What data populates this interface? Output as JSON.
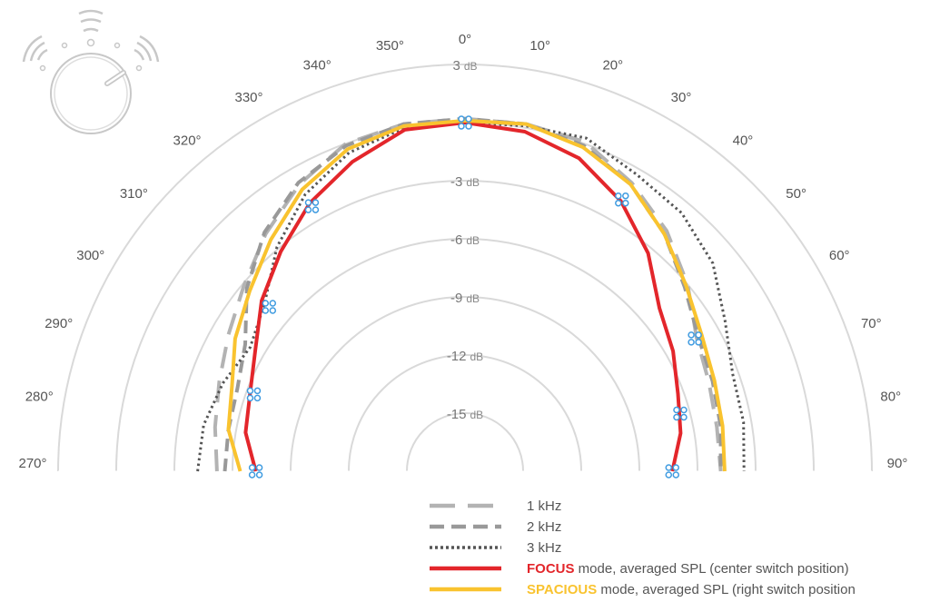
{
  "chart_data": {
    "type": "line",
    "subtype": "polar-half",
    "title": "",
    "radial_axis": {
      "unit": "dB",
      "min": -18,
      "max": 3,
      "ring_values": [
        3,
        -3,
        -6,
        -9,
        -12,
        -15
      ],
      "ring_labels": [
        "3",
        "-3",
        "-6",
        "-9",
        "-12",
        "-15"
      ],
      "extra_rings": [
        0,
        -18
      ]
    },
    "angular_axis": {
      "tick_step_deg": 10,
      "labels": [
        "270°",
        "280°",
        "290°",
        "300°",
        "310°",
        "320°",
        "330°",
        "340°",
        "350°",
        "0°",
        "10°",
        "20°",
        "30°",
        "40°",
        "50°",
        "60°",
        "70°",
        "80°",
        "90°"
      ],
      "degrees": [
        -90,
        -80,
        -70,
        -60,
        -50,
        -40,
        -30,
        -20,
        -10,
        0,
        10,
        20,
        30,
        40,
        50,
        60,
        70,
        80,
        90
      ]
    },
    "grid": true,
    "legend_position": "bottom-right",
    "x_angles_deg": [
      -90,
      -80,
      -70,
      -60,
      -50,
      -40,
      -30,
      -20,
      -10,
      0,
      10,
      20,
      30,
      40,
      50,
      60,
      70,
      80,
      90
    ],
    "series": [
      {
        "name": "1 kHz",
        "style": "long-dash",
        "color": "#b3b3b3",
        "values": [
          -5.2,
          -4.9,
          -4.5,
          -3.9,
          -3.1,
          -2.0,
          -0.9,
          0.0,
          0.2,
          0.2,
          0.2,
          0.1,
          -0.8,
          -1.8,
          -3.0,
          -4.2,
          -4.6,
          -4.8,
          -4.8
        ]
      },
      {
        "name": "2 kHz",
        "style": "dash",
        "color": "#999999",
        "values": [
          -5.6,
          -5.6,
          -5.5,
          -4.9,
          -3.3,
          -1.9,
          -0.8,
          -0.1,
          0.2,
          0.2,
          0.2,
          -0.1,
          -0.9,
          -2.0,
          -3.2,
          -4.1,
          -4.4,
          -4.6,
          -4.8
        ]
      },
      {
        "name": "3 kHz",
        "style": "dotted",
        "color": "#555555",
        "values": [
          -4.2,
          -4.3,
          -4.7,
          -5.2,
          -4.5,
          -2.9,
          -1.5,
          -0.5,
          0.0,
          0.0,
          0.1,
          0.3,
          -0.3,
          -0.6,
          -1.3,
          -2.5,
          -3.3,
          -3.4,
          -3.6
        ]
      },
      {
        "name": "FOCUS mode, averaged SPL (center switch position)",
        "style": "solid",
        "color": "#e3262b",
        "values": [
          -7.2,
          -6.5,
          -6.2,
          -5.5,
          -4.3,
          -3.2,
          -2.0,
          -1.0,
          -0.1,
          0.0,
          -0.2,
          -0.8,
          -1.9,
          -3.3,
          -4.9,
          -5.6,
          -6.3,
          -6.7,
          -7.3
        ]
      },
      {
        "name": "SPACIOUS mode, averaged SPL (right switch position",
        "style": "solid",
        "color": "#f9c32f",
        "values": [
          -6.4,
          -5.6,
          -5.2,
          -4.3,
          -3.5,
          -2.4,
          -1.2,
          -0.3,
          0.1,
          0.1,
          0.2,
          -0.2,
          -0.9,
          -2.0,
          -3.1,
          -3.9,
          -4.3,
          -4.5,
          -4.6
        ]
      }
    ],
    "markers": {
      "style": "blue-circle-cluster",
      "color": "#3f9be0",
      "points": [
        {
          "angle_deg": -90,
          "db": -7.2
        },
        {
          "angle_deg": -70,
          "db": -6.4
        },
        {
          "angle_deg": -50,
          "db": -4.8
        },
        {
          "angle_deg": -30,
          "db": -2.2
        },
        {
          "angle_deg": 0,
          "db": 0.0
        },
        {
          "angle_deg": 30,
          "db": -1.8
        },
        {
          "angle_deg": 60,
          "db": -4.3
        },
        {
          "angle_deg": 75,
          "db": -6.5
        },
        {
          "angle_deg": 90,
          "db": -7.3
        }
      ]
    },
    "legend": [
      {
        "style": "long-dash",
        "color": "#b3b3b3",
        "parts": [
          {
            "text": "1 kHz",
            "bold": false,
            "color": "#555555"
          }
        ]
      },
      {
        "style": "dash",
        "color": "#999999",
        "parts": [
          {
            "text": "2 kHz",
            "bold": false,
            "color": "#555555"
          }
        ]
      },
      {
        "style": "dotted",
        "color": "#555555",
        "parts": [
          {
            "text": "3 kHz",
            "bold": false,
            "color": "#555555"
          }
        ]
      },
      {
        "style": "solid",
        "color": "#e3262b",
        "parts": [
          {
            "text": "FOCUS",
            "bold": true,
            "color": "#e3262b"
          },
          {
            "text": " mode, averaged SPL (center switch position)",
            "bold": false,
            "color": "#555555"
          }
        ]
      },
      {
        "style": "solid",
        "color": "#f9c32f",
        "parts": [
          {
            "text": "SPACIOUS",
            "bold": true,
            "color": "#f9c32f"
          },
          {
            "text": " mode, averaged SPL (right switch position",
            "bold": false,
            "color": "#555555"
          }
        ]
      }
    ]
  },
  "knob_icon": {
    "name": "volume-knob-icon",
    "color": "#c8c8c8"
  }
}
